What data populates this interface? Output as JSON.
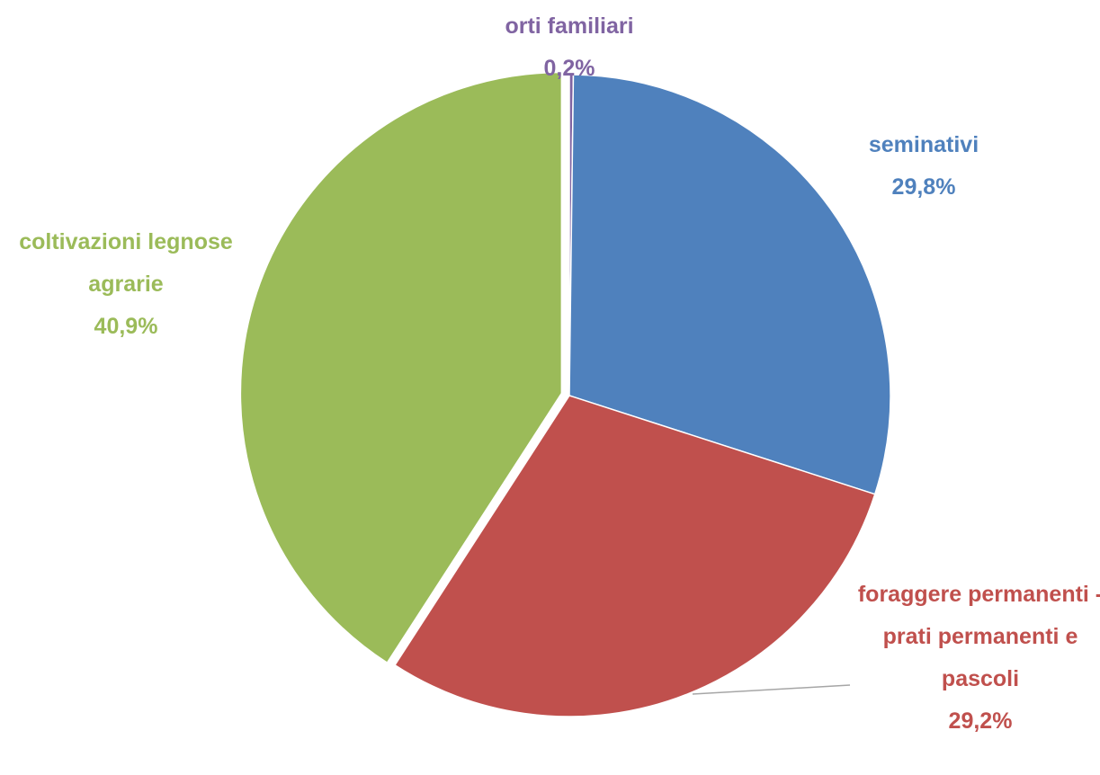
{
  "chart_data": {
    "type": "pie",
    "categories": [
      "orti familiari",
      "seminativi",
      "foraggere permanenti - prati permanenti e pascoli",
      "coltivazioni legnose agrarie"
    ],
    "values": [
      0.2,
      29.8,
      29.2,
      40.9
    ],
    "value_labels": [
      "0,2%",
      "29,8%",
      "29,2%",
      "40,9%"
    ],
    "colors": [
      "#8064a2",
      "#4f81bd",
      "#c0504d",
      "#9bbb59"
    ]
  }
}
